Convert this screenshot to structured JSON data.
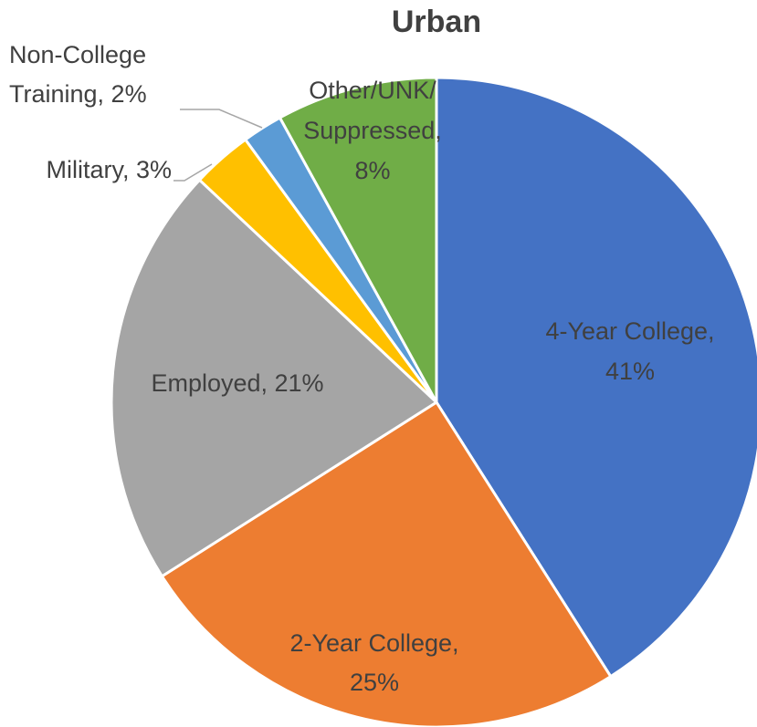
{
  "chart_data": {
    "type": "pie",
    "title": "Urban",
    "values": [
      41,
      25,
      21,
      3,
      2,
      8
    ],
    "value_labels": [
      [
        "4-Year College,",
        "41%"
      ],
      [
        "2-Year College,",
        "25%"
      ],
      [
        "Employed, 21%"
      ],
      [
        "Military, 3%"
      ],
      [
        "Non-College",
        "Training, 2%"
      ],
      [
        "Other/UNK/",
        "Suppressed,",
        "8%"
      ]
    ],
    "colors": [
      "#4472c4",
      "#ed7d31",
      "#a5a5a5",
      "#ffc000",
      "#5b9bd5",
      "#70ad47"
    ]
  }
}
